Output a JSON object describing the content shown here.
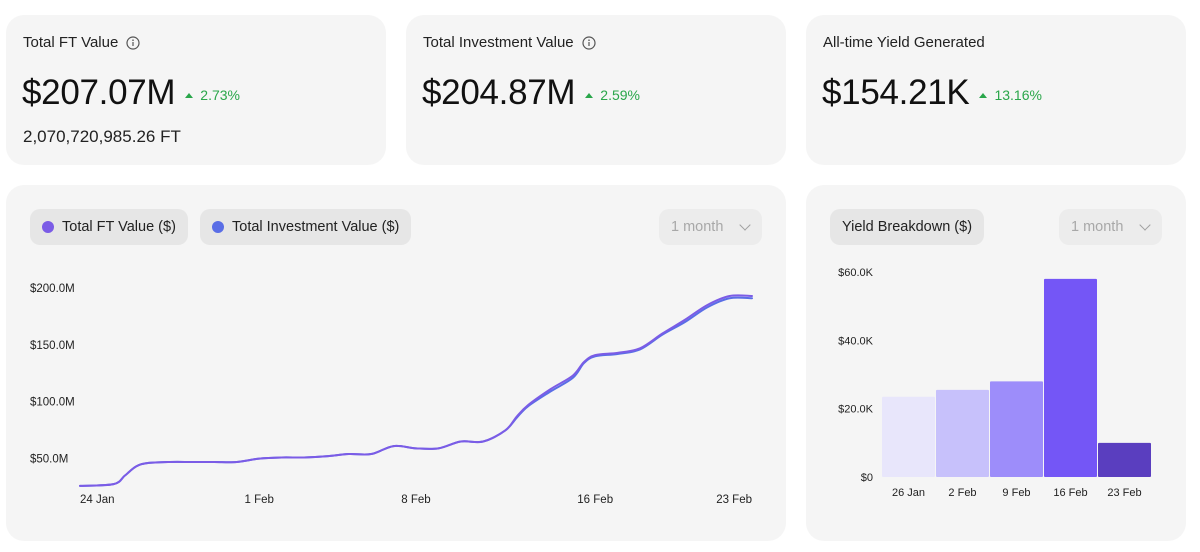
{
  "stats": [
    {
      "title": "Total FT Value",
      "value": "$207.07M",
      "change": "2.73%",
      "sub": "2,070,720,985.26 FT",
      "info": "info-icon"
    },
    {
      "title": "Total Investment Value",
      "value": "$204.87M",
      "change": "2.59%",
      "info": "info-icon"
    },
    {
      "title": "All-time Yield Generated",
      "value": "$154.21K",
      "change": "13.16%"
    }
  ],
  "colors": {
    "card": "#f5f5f5",
    "positive": "#2aa64a",
    "ft_series": "#7b5ce6",
    "investment_series": "#5a6ee6"
  },
  "line_panel": {
    "range": "1 month"
  },
  "bar_panel": {
    "title": "Yield Breakdown ($)",
    "range": "1 month"
  },
  "chart_data": [
    {
      "type": "line",
      "title": "",
      "legend_position": "top-left",
      "xlabel": "",
      "ylabel": "",
      "x_ticks": [
        "24 Jan",
        "1 Feb",
        "8 Feb",
        "16 Feb",
        "23 Feb"
      ],
      "x_tick_days": [
        0,
        8,
        15,
        23,
        30
      ],
      "y_ticks": [
        "$50.0M",
        "$100.0M",
        "$150.0M",
        "$200.0M"
      ],
      "y_tick_values": [
        50,
        100,
        150,
        200
      ],
      "ylim": [
        25,
        215
      ],
      "x_days": [
        0,
        1.5,
        2,
        2.5,
        3,
        4,
        5,
        6,
        7,
        8,
        9,
        10,
        11,
        12,
        13,
        14,
        15,
        16,
        17,
        18,
        19,
        19.5,
        20,
        21,
        22,
        22.5,
        23,
        24,
        25,
        26,
        27,
        28,
        29,
        30
      ],
      "series": [
        {
          "name": "Total FT Value ($)",
          "color": "#7b5ce6",
          "values": [
            26,
            27.5,
            35,
            43,
            46,
            47,
            47,
            47,
            47,
            50,
            51,
            51,
            52,
            54,
            54,
            61,
            59,
            59,
            65,
            65,
            75,
            87,
            97,
            111,
            123,
            135,
            141,
            143,
            147,
            160,
            172,
            185,
            193,
            193
          ]
        },
        {
          "name": "Total Investment Value ($)",
          "color": "#5a6ee6",
          "values": [
            26,
            27.5,
            35,
            43,
            46,
            47,
            47,
            47,
            47,
            50,
            51,
            51,
            52,
            54,
            54,
            61,
            59,
            59,
            65,
            65,
            75,
            86,
            96,
            109,
            121,
            134,
            140,
            142,
            146,
            159,
            170,
            183,
            191,
            191
          ]
        }
      ]
    },
    {
      "type": "bar",
      "title": "Yield Breakdown ($)",
      "categories": [
        "26 Jan",
        "2 Feb",
        "9 Feb",
        "16 Feb",
        "23 Feb"
      ],
      "values": [
        23.5,
        25.5,
        28,
        58,
        10
      ],
      "colors": [
        "#e8e6fb",
        "#c7c1fb",
        "#9d8dfa",
        "#7456f6",
        "#5a3ebf"
      ],
      "y_ticks": [
        "$0",
        "$20.0K",
        "$40.0K",
        "$60.0K"
      ],
      "y_tick_values": [
        0,
        20,
        40,
        60
      ],
      "ylim": [
        0,
        60
      ],
      "xlabel": "",
      "ylabel": ""
    }
  ]
}
